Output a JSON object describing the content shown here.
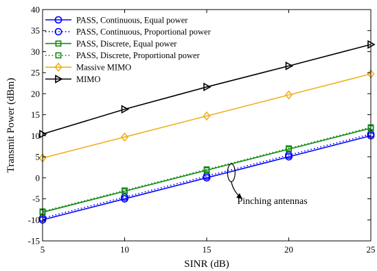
{
  "chart_data": {
    "type": "line",
    "xlabel": "SINR (dB)",
    "ylabel": "Transmit Power (dBm)",
    "xlim": [
      5,
      25
    ],
    "ylim": [
      -15,
      40
    ],
    "xticks": [
      5,
      10,
      15,
      20,
      25
    ],
    "yticks": [
      -15,
      -10,
      -5,
      0,
      5,
      10,
      15,
      20,
      25,
      30,
      35,
      40
    ],
    "grid": false,
    "legend_position": "top-left",
    "x": [
      5,
      10,
      15,
      20,
      25
    ],
    "series": [
      {
        "name": "PASS, Continuous, Equal power",
        "values": [
          -10.0,
          -5.0,
          0.0,
          5.0,
          10.0
        ],
        "color": "#0000ff",
        "line_style": "solid",
        "marker": "circle"
      },
      {
        "name": "PASS, Continuous, Proportional power",
        "values": [
          -9.6,
          -4.6,
          0.4,
          5.4,
          10.4
        ],
        "color": "#0000ff",
        "line_style": "dotted",
        "marker": "circle"
      },
      {
        "name": "PASS, Discrete, Equal power",
        "values": [
          -8.2,
          -3.2,
          1.8,
          6.8,
          11.8
        ],
        "color": "#138a13",
        "line_style": "solid",
        "marker": "square"
      },
      {
        "name": "PASS, Discrete, Proportional power",
        "values": [
          -8.0,
          -3.0,
          2.0,
          7.0,
          12.0
        ],
        "color": "#138a13",
        "line_style": "dotted",
        "marker": "square"
      },
      {
        "name": "Massive MIMO",
        "values": [
          4.7,
          9.7,
          14.7,
          19.7,
          24.7
        ],
        "color": "#edb120",
        "line_style": "solid",
        "marker": "diamond"
      },
      {
        "name": "MIMO",
        "values": [
          10.4,
          16.3,
          21.6,
          26.6,
          31.7
        ],
        "color": "#000000",
        "line_style": "solid",
        "marker": "triangle-right"
      }
    ],
    "annotations": [
      {
        "text": "Pinching antennas",
        "x": 19.0,
        "y": -6.2
      }
    ]
  }
}
